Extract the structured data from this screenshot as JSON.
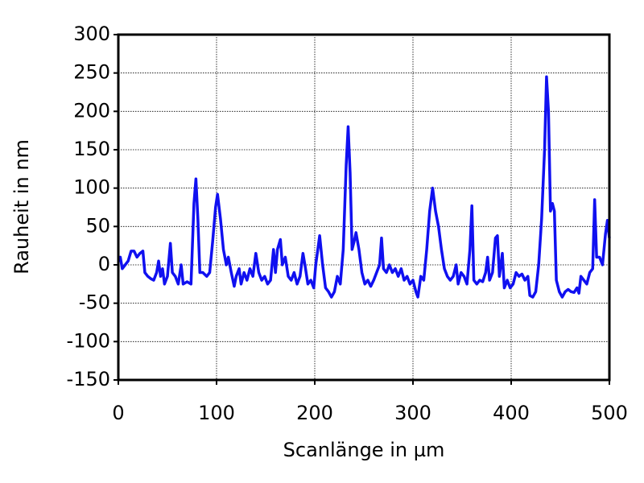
{
  "chart_data": {
    "type": "line",
    "xlabel": "Scanlänge in µm",
    "ylabel": "Rauheit in nm",
    "xlim": [
      0,
      500
    ],
    "xticks": [
      0,
      100,
      200,
      300,
      400,
      500
    ],
    "ylim": [
      -150,
      300
    ],
    "yticks": [
      -150,
      -100,
      -50,
      0,
      50,
      100,
      150,
      200,
      250,
      300
    ],
    "grid": true,
    "series": [
      {
        "color": "#1010f0",
        "x": [
          0,
          2,
          4,
          7,
          10,
          13,
          16,
          19,
          22,
          25,
          27,
          30,
          33,
          36,
          39,
          41,
          43,
          45,
          47,
          50,
          53,
          55,
          58,
          61,
          64,
          66,
          70,
          74,
          77,
          79,
          81,
          83,
          86,
          90,
          93,
          96,
          99,
          101,
          104,
          107,
          110,
          112,
          115,
          118,
          120,
          123,
          125,
          128,
          131,
          134,
          137,
          140,
          143,
          146,
          149,
          152,
          155,
          158,
          160,
          162,
          165,
          167,
          170,
          173,
          176,
          179,
          182,
          185,
          188,
          190,
          193,
          196,
          199,
          201,
          205,
          208,
          211,
          214,
          217,
          220,
          223,
          226,
          229,
          232,
          234,
          236,
          238,
          240,
          242,
          245,
          248,
          251,
          254,
          257,
          260,
          263,
          266,
          268,
          270,
          273,
          276,
          279,
          282,
          285,
          288,
          291,
          294,
          297,
          300,
          303,
          305,
          308,
          311,
          314,
          317,
          320,
          323,
          326,
          329,
          332,
          335,
          338,
          341,
          344,
          346,
          349,
          352,
          355,
          358,
          360,
          362,
          365,
          368,
          371,
          374,
          376,
          378,
          381,
          384,
          386,
          388,
          391,
          393,
          396,
          399,
          402,
          405,
          408,
          411,
          414,
          417,
          419,
          422,
          425,
          428,
          431,
          434,
          436,
          438,
          440,
          442,
          444,
          446,
          449,
          452,
          455,
          458,
          461,
          464,
          467,
          469,
          471,
          474,
          477,
          480,
          483,
          485,
          487,
          490,
          493,
          496,
          498,
          500
        ],
        "values": [
          5,
          10,
          -5,
          0,
          5,
          18,
          18,
          10,
          15,
          18,
          -10,
          -15,
          -18,
          -20,
          -10,
          5,
          -15,
          -5,
          -25,
          -15,
          28,
          -10,
          -15,
          -25,
          0,
          -25,
          -22,
          -25,
          80,
          112,
          60,
          -10,
          -10,
          -15,
          -10,
          30,
          75,
          92,
          60,
          20,
          0,
          10,
          -10,
          -28,
          -15,
          -5,
          -25,
          -10,
          -20,
          -5,
          -15,
          15,
          -10,
          -20,
          -15,
          -25,
          -20,
          20,
          -10,
          20,
          33,
          0,
          10,
          -15,
          -20,
          -10,
          -25,
          -15,
          15,
          0,
          -25,
          -20,
          -30,
          0,
          38,
          0,
          -30,
          -35,
          -42,
          -35,
          -15,
          -25,
          20,
          130,
          180,
          120,
          20,
          30,
          42,
          20,
          -10,
          -25,
          -20,
          -28,
          -20,
          -10,
          0,
          35,
          -5,
          -10,
          0,
          -10,
          -5,
          -15,
          -5,
          -20,
          -15,
          -25,
          -20,
          -35,
          -42,
          -15,
          -20,
          20,
          70,
          100,
          70,
          50,
          20,
          -5,
          -15,
          -20,
          -15,
          0,
          -25,
          -10,
          -15,
          -25,
          20,
          77,
          -20,
          -25,
          -20,
          -22,
          -10,
          10,
          -20,
          -10,
          35,
          38,
          -15,
          15,
          -30,
          -20,
          -30,
          -25,
          -10,
          -15,
          -12,
          -20,
          -15,
          -40,
          -42,
          -35,
          0,
          60,
          150,
          245,
          200,
          70,
          80,
          70,
          -20,
          -35,
          -42,
          -35,
          -32,
          -35,
          -36,
          -30,
          -37,
          -15,
          -20,
          -25,
          -10,
          -5,
          85,
          10,
          10,
          0,
          40,
          58,
          35
        ]
      }
    ]
  }
}
